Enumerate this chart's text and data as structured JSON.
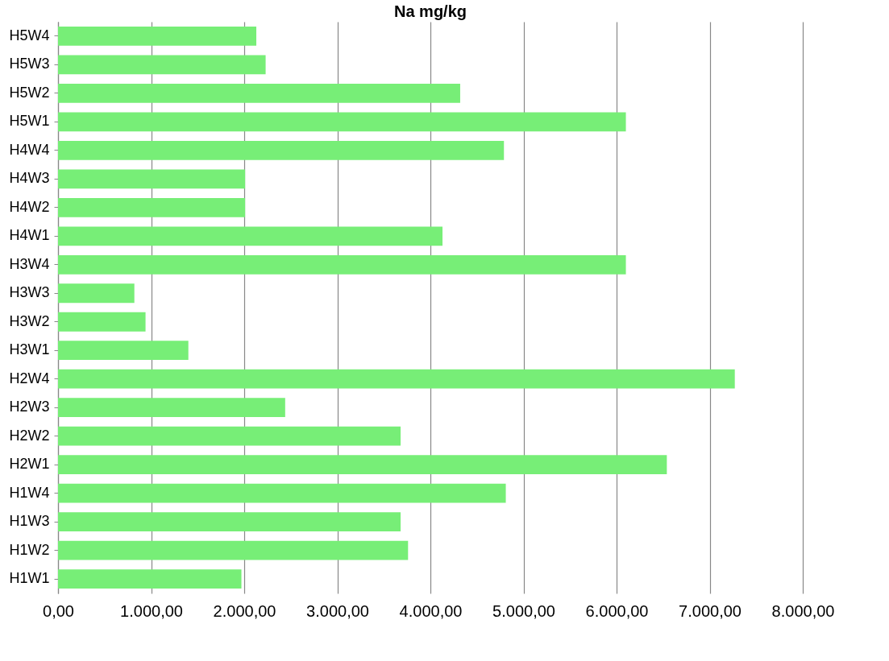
{
  "chart_data": {
    "type": "bar",
    "orientation": "horizontal",
    "title": "Na mg/kg",
    "categories": [
      "H5W4",
      "H5W3",
      "H5W2",
      "H5W1",
      "H4W4",
      "H4W3",
      "H4W2",
      "H4W1",
      "H3W4",
      "H3W3",
      "H3W2",
      "H3W1",
      "H2W4",
      "H2W3",
      "H2W2",
      "H2W1",
      "H1W4",
      "H1W3",
      "H1W2",
      "H1W1"
    ],
    "values": [
      2130,
      2230,
      4320,
      6100,
      4790,
      2010,
      2010,
      4130,
      6100,
      820,
      940,
      1400,
      7270,
      2440,
      3680,
      6540,
      4810,
      3680,
      3760,
      1970
    ],
    "color": "#77ee77",
    "xlim": [
      0,
      8000
    ],
    "xticks": [
      {
        "value": 0,
        "label": "0,00"
      },
      {
        "value": 1000,
        "label": "1.000,00"
      },
      {
        "value": 2000,
        "label": "2.000,00"
      },
      {
        "value": 3000,
        "label": "3.000,00"
      },
      {
        "value": 4000,
        "label": "4.000,00"
      },
      {
        "value": 5000,
        "label": "5.000,00"
      },
      {
        "value": 6000,
        "label": "6.000,00"
      },
      {
        "value": 7000,
        "label": "7.000,00"
      },
      {
        "value": 8000,
        "label": "8.000,00"
      }
    ],
    "grid": "x"
  }
}
